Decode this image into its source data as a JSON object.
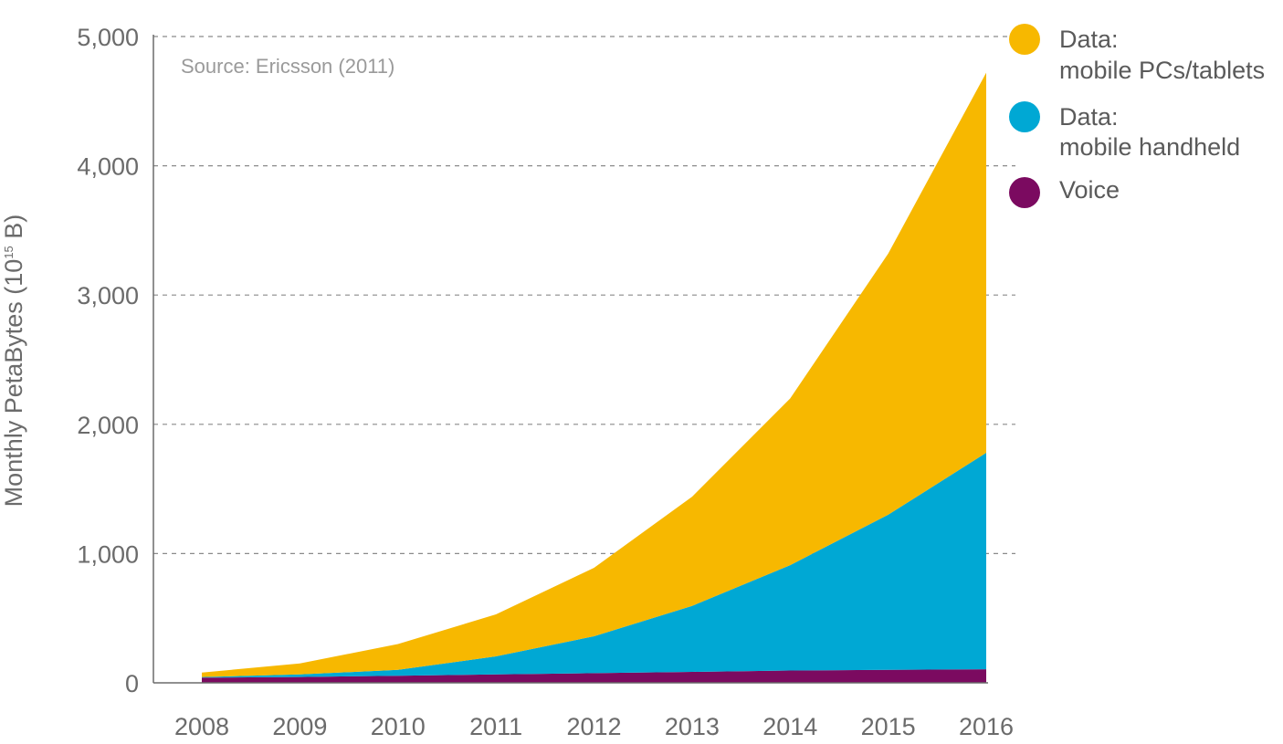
{
  "chart_data": {
    "type": "area",
    "stacked": true,
    "source_note": "Source: Ericsson (2011)",
    "ylabel": "Monthly PetaBytes (10",
    "ylabel_sup": "15",
    "ylabel_end": " B)",
    "x": [
      "2008",
      "2009",
      "2010",
      "2011",
      "2012",
      "2013",
      "2014",
      "2015",
      "2016"
    ],
    "ylim": [
      0,
      5000
    ],
    "yticks": [
      0,
      1000,
      2000,
      3000,
      4000,
      5000
    ],
    "ytick_labels": [
      "0",
      "1,000",
      "2,000",
      "3,000",
      "4,000",
      "5,000"
    ],
    "grid": true,
    "legend_position": "top-right",
    "series": [
      {
        "name": "Voice",
        "color": "#7b0a60",
        "values": [
          40,
          45,
          55,
          65,
          75,
          85,
          95,
          100,
          105
        ]
      },
      {
        "name_line1": "Data:",
        "name_line2": "mobile handheld",
        "color": "#00a8d4",
        "values": [
          5,
          20,
          45,
          140,
          285,
          510,
          815,
          1200,
          1675
        ]
      },
      {
        "name_line1": "Data:",
        "name_line2": "mobile PCs/tablets",
        "color": "#f7b800",
        "values": [
          35,
          85,
          200,
          325,
          530,
          845,
          1290,
          2020,
          2940
        ]
      }
    ]
  }
}
